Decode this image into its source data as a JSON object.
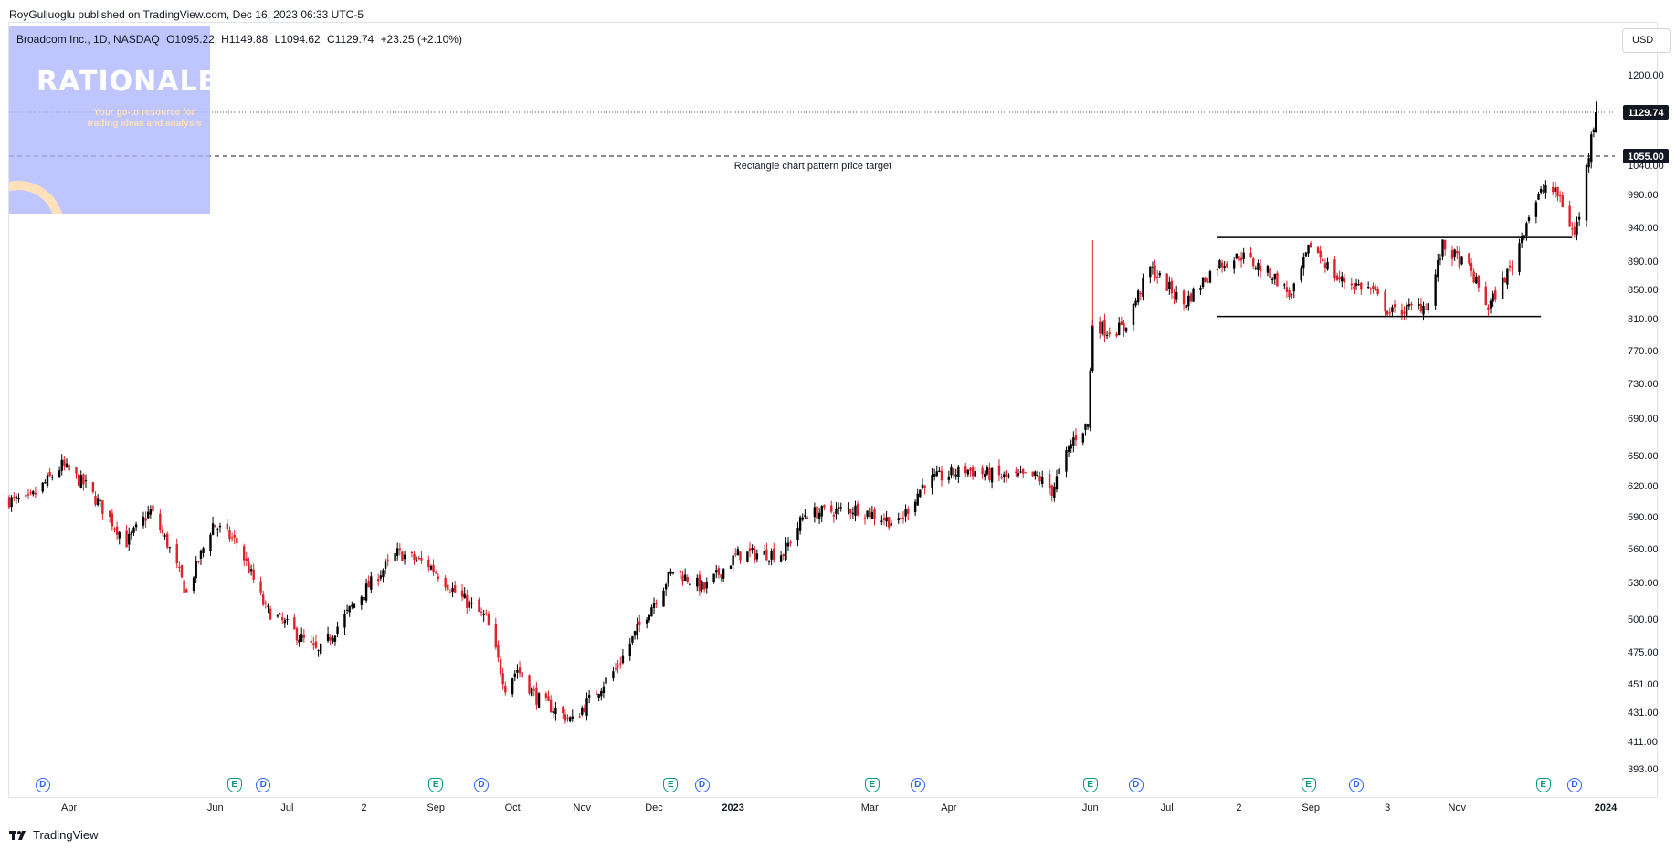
{
  "publish_line": "RoyGulluoglu published on TradingView.com, Dec 16, 2023 06:33 UTC-5",
  "legend": {
    "symbol": "Broadcom Inc., 1D, NASDAQ",
    "open": "O1095.22",
    "high": "H1149.88",
    "low": "L1094.62",
    "close": "C1129.74",
    "change": "+23.25 (+2.10%)"
  },
  "logo": {
    "title": "RATIONALE",
    "tagline": "Your go-to resource for trading ideas and analysis"
  },
  "currency_button": "USD",
  "brand": "TradingView",
  "colors": {
    "up": "#000000",
    "down": "#e0202a",
    "axis_text": "#131722",
    "badge_dividend": "#2962ff",
    "badge_earnings": "#089981"
  },
  "event_badges": [
    {
      "type": "dividend",
      "label": "D",
      "date": "2022-03-21"
    },
    {
      "type": "earnings",
      "label": "E",
      "date": "2022-06-09"
    },
    {
      "type": "dividend",
      "label": "D",
      "date": "2022-06-21"
    },
    {
      "type": "earnings",
      "label": "E",
      "date": "2022-09-01"
    },
    {
      "type": "dividend",
      "label": "D",
      "date": "2022-09-20"
    },
    {
      "type": "earnings",
      "label": "E",
      "date": "2022-12-08"
    },
    {
      "type": "dividend",
      "label": "D",
      "date": "2022-12-21"
    },
    {
      "type": "earnings",
      "label": "E",
      "date": "2023-03-02"
    },
    {
      "type": "dividend",
      "label": "D",
      "date": "2023-03-21"
    },
    {
      "type": "earnings",
      "label": "E",
      "date": "2023-06-01"
    },
    {
      "type": "dividend",
      "label": "D",
      "date": "2023-06-20"
    },
    {
      "type": "earnings",
      "label": "E",
      "date": "2023-08-31"
    },
    {
      "type": "dividend",
      "label": "D",
      "date": "2023-09-20"
    },
    {
      "type": "earnings",
      "label": "E",
      "date": "2023-12-07"
    },
    {
      "type": "dividend",
      "label": "D",
      "date": "2023-12-20"
    }
  ],
  "chart_data": {
    "type": "candlestick",
    "symbol": "Broadcom Inc.",
    "interval": "1D",
    "exchange": "NASDAQ",
    "currency": "USD",
    "y_ticks": [
      393.0,
      411.0,
      431.0,
      451.0,
      475.0,
      500.0,
      530.0,
      560.0,
      590.0,
      620.0,
      650.0,
      690.0,
      730.0,
      770.0,
      810.0,
      850.0,
      890.0,
      940.0,
      990.0,
      1040.0,
      1200.0
    ],
    "y_tick_labels": [
      "393.00",
      "411.00",
      "431.00",
      "451.00",
      "475.00",
      "500.00",
      "530.00",
      "560.00",
      "590.00",
      "620.00",
      "650.00",
      "690.00",
      "730.00",
      "770.00",
      "810.00",
      "850.00",
      "890.00",
      "940.00",
      "990.00",
      "1040.00",
      "1200.00"
    ],
    "x_ticks": [
      {
        "label": "Apr",
        "date": "2022-04-01"
      },
      {
        "label": "Jun",
        "date": "2022-06-01"
      },
      {
        "label": "Jul",
        "date": "2022-07-01"
      },
      {
        "label": "2",
        "date": "2022-08-02"
      },
      {
        "label": "Sep",
        "date": "2022-09-01"
      },
      {
        "label": "Oct",
        "date": "2022-10-03"
      },
      {
        "label": "Nov",
        "date": "2022-11-01"
      },
      {
        "label": "Dec",
        "date": "2022-12-01"
      },
      {
        "label": "2023",
        "date": "2023-01-03"
      },
      {
        "label": "Mar",
        "date": "2023-03-01"
      },
      {
        "label": "Apr",
        "date": "2023-04-03"
      },
      {
        "label": "Jun",
        "date": "2023-06-01"
      },
      {
        "label": "Jul",
        "date": "2023-07-03"
      },
      {
        "label": "2",
        "date": "2023-08-02"
      },
      {
        "label": "Sep",
        "date": "2023-09-01"
      },
      {
        "label": "3",
        "date": "2023-10-03"
      },
      {
        "label": "Nov",
        "date": "2023-11-01"
      },
      {
        "label": "2024",
        "date": "2024-01-02"
      }
    ],
    "x_range": [
      "2022-03-07",
      "2024-01-02"
    ],
    "key_points": [
      {
        "date": "2022-03-07",
        "close": 606
      },
      {
        "date": "2022-03-15",
        "close": 605
      },
      {
        "date": "2022-03-29",
        "close": 640
      },
      {
        "date": "2022-04-08",
        "close": 620
      },
      {
        "date": "2022-04-25",
        "close": 566
      },
      {
        "date": "2022-05-05",
        "close": 596
      },
      {
        "date": "2022-05-12",
        "close": 565
      },
      {
        "date": "2022-05-20",
        "close": 521
      },
      {
        "date": "2022-05-31",
        "close": 583
      },
      {
        "date": "2022-06-10",
        "close": 566
      },
      {
        "date": "2022-06-22",
        "close": 508
      },
      {
        "date": "2022-07-01",
        "close": 495
      },
      {
        "date": "2022-07-14",
        "close": 474
      },
      {
        "date": "2022-08-01",
        "close": 520
      },
      {
        "date": "2022-08-16",
        "close": 556
      },
      {
        "date": "2022-08-29",
        "close": 546
      },
      {
        "date": "2022-09-09",
        "close": 522
      },
      {
        "date": "2022-09-22",
        "close": 500
      },
      {
        "date": "2022-09-30",
        "close": 449
      },
      {
        "date": "2022-10-05",
        "close": 462
      },
      {
        "date": "2022-10-13",
        "close": 441
      },
      {
        "date": "2022-10-28",
        "close": 425
      },
      {
        "date": "2022-11-15",
        "close": 462
      },
      {
        "date": "2022-11-30",
        "close": 511
      },
      {
        "date": "2022-12-09",
        "close": 541
      },
      {
        "date": "2022-12-22",
        "close": 525
      },
      {
        "date": "2023-01-05",
        "close": 555
      },
      {
        "date": "2023-01-24",
        "close": 556
      },
      {
        "date": "2023-02-02",
        "close": 593
      },
      {
        "date": "2023-02-24",
        "close": 598
      },
      {
        "date": "2023-03-13",
        "close": 583
      },
      {
        "date": "2023-03-24",
        "close": 624
      },
      {
        "date": "2023-04-10",
        "close": 636
      },
      {
        "date": "2023-04-26",
        "close": 628
      },
      {
        "date": "2023-05-10",
        "close": 629
      },
      {
        "date": "2023-05-16",
        "close": 615
      },
      {
        "date": "2023-05-25",
        "close": 668
      },
      {
        "date": "2023-05-31",
        "close": 684
      },
      {
        "date": "2023-06-02",
        "close": 805
      },
      {
        "date": "2023-06-08",
        "close": 795
      },
      {
        "date": "2023-06-15",
        "close": 798
      },
      {
        "date": "2023-06-26",
        "close": 880
      },
      {
        "date": "2023-07-10",
        "close": 830
      },
      {
        "date": "2023-07-24",
        "close": 885
      },
      {
        "date": "2023-08-03",
        "close": 898
      },
      {
        "date": "2023-08-16",
        "close": 870
      },
      {
        "date": "2023-08-24",
        "close": 840
      },
      {
        "date": "2023-09-01",
        "close": 915
      },
      {
        "date": "2023-09-12",
        "close": 865
      },
      {
        "date": "2023-09-26",
        "close": 850
      },
      {
        "date": "2023-10-04",
        "close": 818
      },
      {
        "date": "2023-10-10",
        "close": 822
      },
      {
        "date": "2023-10-20",
        "close": 830
      },
      {
        "date": "2023-10-26",
        "close": 912
      },
      {
        "date": "2023-11-06",
        "close": 880
      },
      {
        "date": "2023-11-14",
        "close": 825
      },
      {
        "date": "2023-11-24",
        "close": 885
      },
      {
        "date": "2023-12-01",
        "close": 960
      },
      {
        "date": "2023-12-08",
        "close": 1005
      },
      {
        "date": "2023-12-14",
        "close": 985
      },
      {
        "date": "2023-12-19",
        "close": 935
      },
      {
        "date": "2023-12-20",
        "close": 930
      },
      {
        "date": "2023-12-22",
        "close": 960
      },
      {
        "date": "2023-12-26",
        "close": 1060
      },
      {
        "date": "2023-12-27",
        "close": 1100
      },
      {
        "date": "2023-12-28",
        "close": 1106
      },
      {
        "date": "2023-12-29",
        "close": 1129.74
      }
    ],
    "last_bar": {
      "open": 1095.22,
      "high": 1149.88,
      "low": 1094.62,
      "close": 1129.74,
      "change": 23.25,
      "change_pct": 2.1
    },
    "last_price_label": "1129.74",
    "target_label": "1055.00",
    "annotations": [
      {
        "type": "horizontal_line",
        "price": 1055.0,
        "style": "dashed",
        "text": "Rectangle chart pattern price target"
      },
      {
        "type": "horizontal_line",
        "price": 1129.74,
        "style": "dotted"
      },
      {
        "type": "segment",
        "price": 925,
        "start_date": "2023-07-24",
        "end_date": "2023-12-19",
        "label": "rectangle_top"
      },
      {
        "type": "segment",
        "price": 813,
        "start_date": "2023-07-24",
        "end_date": "2023-12-06",
        "label": "rectangle_bottom"
      }
    ]
  }
}
